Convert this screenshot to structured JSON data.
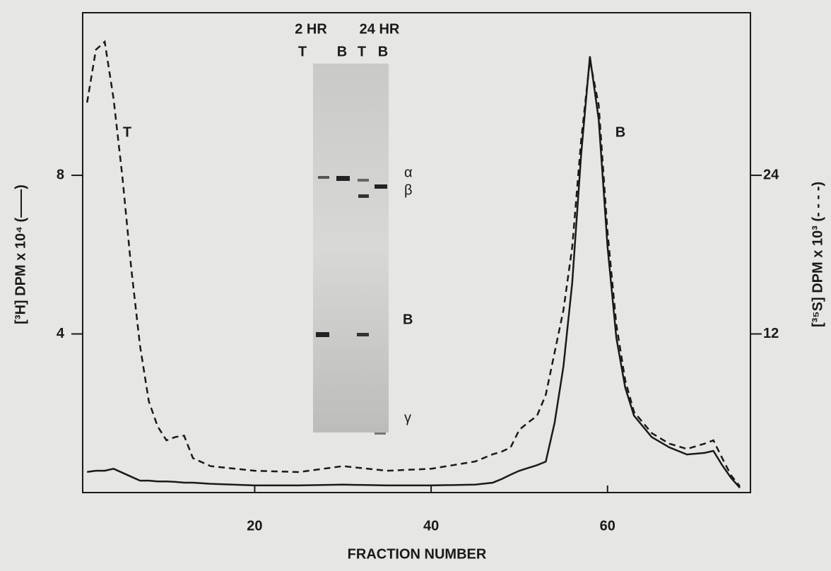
{
  "chart_data": {
    "type": "line",
    "x_label": "FRACTION NUMBER",
    "y_label": "[³H] DPM x 10⁴ (——)",
    "y2_label": "[³⁵S] DPM x 10³ (- - - -)",
    "x": [
      1,
      2,
      3,
      4,
      5,
      6,
      7,
      8,
      9,
      10,
      11,
      12,
      13,
      15,
      20,
      25,
      30,
      35,
      40,
      45,
      47,
      48,
      49,
      50,
      51,
      52,
      53,
      54,
      55,
      56,
      57,
      58,
      59,
      60,
      61,
      62,
      63,
      65,
      67,
      69,
      71,
      72,
      73,
      74,
      75
    ],
    "series": [
      {
        "color": "#1a1a1a",
        "line_style": "solid",
        "axis": "y",
        "values": [
          0.52,
          0.55,
          0.55,
          0.6,
          0.5,
          0.4,
          0.3,
          0.3,
          0.28,
          0.28,
          0.27,
          0.25,
          0.25,
          0.22,
          0.18,
          0.18,
          0.2,
          0.18,
          0.18,
          0.2,
          0.25,
          0.34,
          0.45,
          0.55,
          0.62,
          0.69,
          0.78,
          1.76,
          3.18,
          5.3,
          8.5,
          11.0,
          9.4,
          6.2,
          3.9,
          2.65,
          1.94,
          1.4,
          1.14,
          0.96,
          1.0,
          1.05,
          0.69,
          0.37,
          0.12
        ]
      },
      {
        "color": "#1a1a1a",
        "line_style": "dashed",
        "axis": "y2",
        "values": [
          29.5,
          33.5,
          34.1,
          29.8,
          23.9,
          17.0,
          11.1,
          6.9,
          5.0,
          3.95,
          4.2,
          4.3,
          2.6,
          2.0,
          1.65,
          1.55,
          2.0,
          1.65,
          1.8,
          2.35,
          2.9,
          3.1,
          3.4,
          4.75,
          5.3,
          5.8,
          7.4,
          10.6,
          13.8,
          18.6,
          26.6,
          32.7,
          29.3,
          19.7,
          12.7,
          8.5,
          6.1,
          4.5,
          3.7,
          3.3,
          3.7,
          3.95,
          2.6,
          1.3,
          0.48
        ]
      }
    ],
    "xlim": [
      0.5,
      76.2
    ],
    "xticks": [
      20,
      40,
      60
    ],
    "ylim": [
      0,
      12.1
    ],
    "yticks": [
      4,
      8
    ],
    "y2lim": [
      0,
      36.3
    ],
    "y2ticks": [
      12,
      24
    ],
    "annotations": [
      "T",
      "B"
    ],
    "inset": {
      "time_labels": [
        "2 HR",
        "24 HR"
      ],
      "lane_labels": [
        "T",
        "B",
        "T",
        "B"
      ],
      "band_labels": [
        "α",
        "β",
        "B",
        "γ"
      ]
    }
  }
}
